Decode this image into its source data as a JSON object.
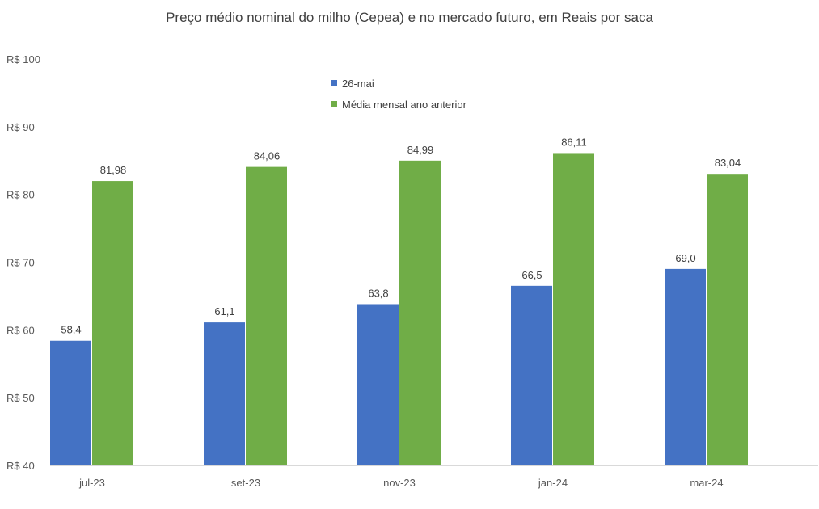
{
  "chart_data": {
    "type": "bar",
    "title": "Preço médio nominal do milho (Cepea) e no mercado futuro, em Reais por saca",
    "xlabel": "",
    "ylabel": "",
    "categories": [
      "jul-23",
      "set-23",
      "nov-23",
      "jan-24",
      "mar-24"
    ],
    "ylim": [
      40,
      100
    ],
    "yticks": [
      40,
      50,
      60,
      70,
      80,
      90,
      100
    ],
    "ytick_labels": [
      "R$ 40",
      "R$ 50",
      "R$ 60",
      "R$ 70",
      "R$ 80",
      "R$ 90",
      "R$ 100"
    ],
    "grid": false,
    "legend_position": "top-center",
    "series": [
      {
        "name": "26-mai",
        "color": "#4472C4",
        "values": [
          58.4,
          61.1,
          63.8,
          66.5,
          69.0
        ],
        "labels": [
          "58,4",
          "61,1",
          "63,8",
          "66,5",
          "69,0"
        ]
      },
      {
        "name": "Média mensal ano anterior",
        "color": "#70AD47",
        "values": [
          81.98,
          84.06,
          84.99,
          86.11,
          83.04
        ],
        "labels": [
          "81,98",
          "84,06",
          "84,99",
          "86,11",
          "83,04"
        ]
      }
    ]
  }
}
